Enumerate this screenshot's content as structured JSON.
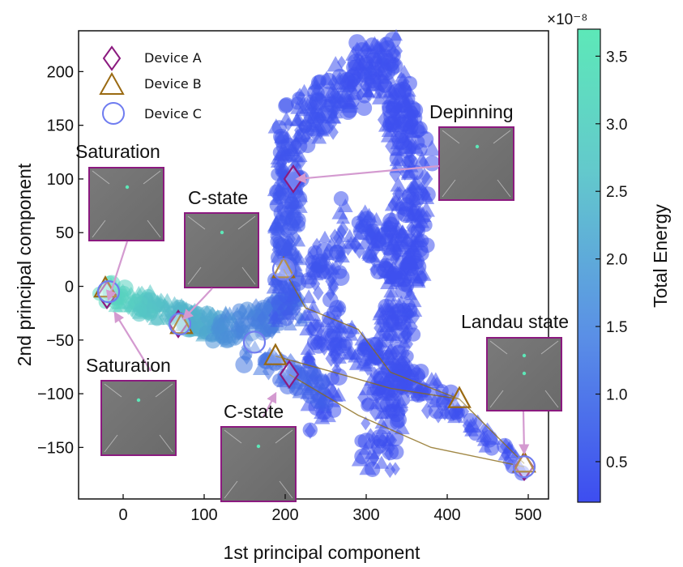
{
  "chart_data": {
    "type": "scatter",
    "xlabel": "1st principal component",
    "ylabel": "2nd principal component",
    "xlim": [
      -55,
      525
    ],
    "ylim": [
      -198,
      238
    ],
    "x_ticks": [
      0,
      100,
      200,
      300,
      400,
      500
    ],
    "y_ticks": [
      -150,
      -100,
      -50,
      0,
      50,
      100,
      150,
      200
    ],
    "legend": [
      {
        "label": "Device A",
        "marker": "diamond",
        "color": "#8b1a7f"
      },
      {
        "label": "Device B",
        "marker": "triangle",
        "color": "#9a6a12"
      },
      {
        "label": "Device C",
        "marker": "circle",
        "color": "#6f7cf0"
      }
    ],
    "colorbar": {
      "label": "Total Energy",
      "exponent": "×10⁻⁸",
      "min": 0.2,
      "max": 3.7,
      "ticks": [
        0.5,
        1.0,
        1.5,
        2.0,
        2.5,
        3.0,
        3.5
      ],
      "low_color": "#3d4df0",
      "high_color": "#5de8b8"
    },
    "series": [
      {
        "name": "Device A",
        "points": [
          [
            210,
            100
          ],
          [
            -20,
            -8
          ],
          [
            68,
            -35
          ],
          [
            205,
            -82
          ],
          [
            495,
            -168
          ]
        ]
      },
      {
        "name": "Device B",
        "points": [
          [
            198,
            16
          ],
          [
            -22,
            -2
          ],
          [
            72,
            -36
          ],
          [
            188,
            -65
          ],
          [
            415,
            -105
          ],
          [
            495,
            -165
          ]
        ]
      },
      {
        "name": "Device C",
        "points": [
          [
            198,
            16
          ],
          [
            -18,
            -5
          ],
          [
            70,
            -35
          ],
          [
            162,
            -52
          ],
          [
            495,
            -168
          ]
        ]
      }
    ],
    "annotations": [
      {
        "text": "Depinning",
        "target": [
          210,
          100
        ]
      },
      {
        "text": "Saturation",
        "target": [
          -20,
          -5
        ]
      },
      {
        "text": "C-state",
        "target": [
          70,
          -35
        ]
      },
      {
        "text": "Saturation",
        "target": [
          -15,
          -20
        ]
      },
      {
        "text": "C-state",
        "target": [
          188,
          -90
        ]
      },
      {
        "text": "Landau state",
        "target": [
          495,
          -165
        ]
      }
    ]
  },
  "labels": {
    "depinning": "Depinning",
    "saturation_top": "Saturation",
    "cstate_top": "C-state",
    "saturation_bottom": "Saturation",
    "cstate_bottom": "C-state",
    "landau": "Landau state"
  }
}
